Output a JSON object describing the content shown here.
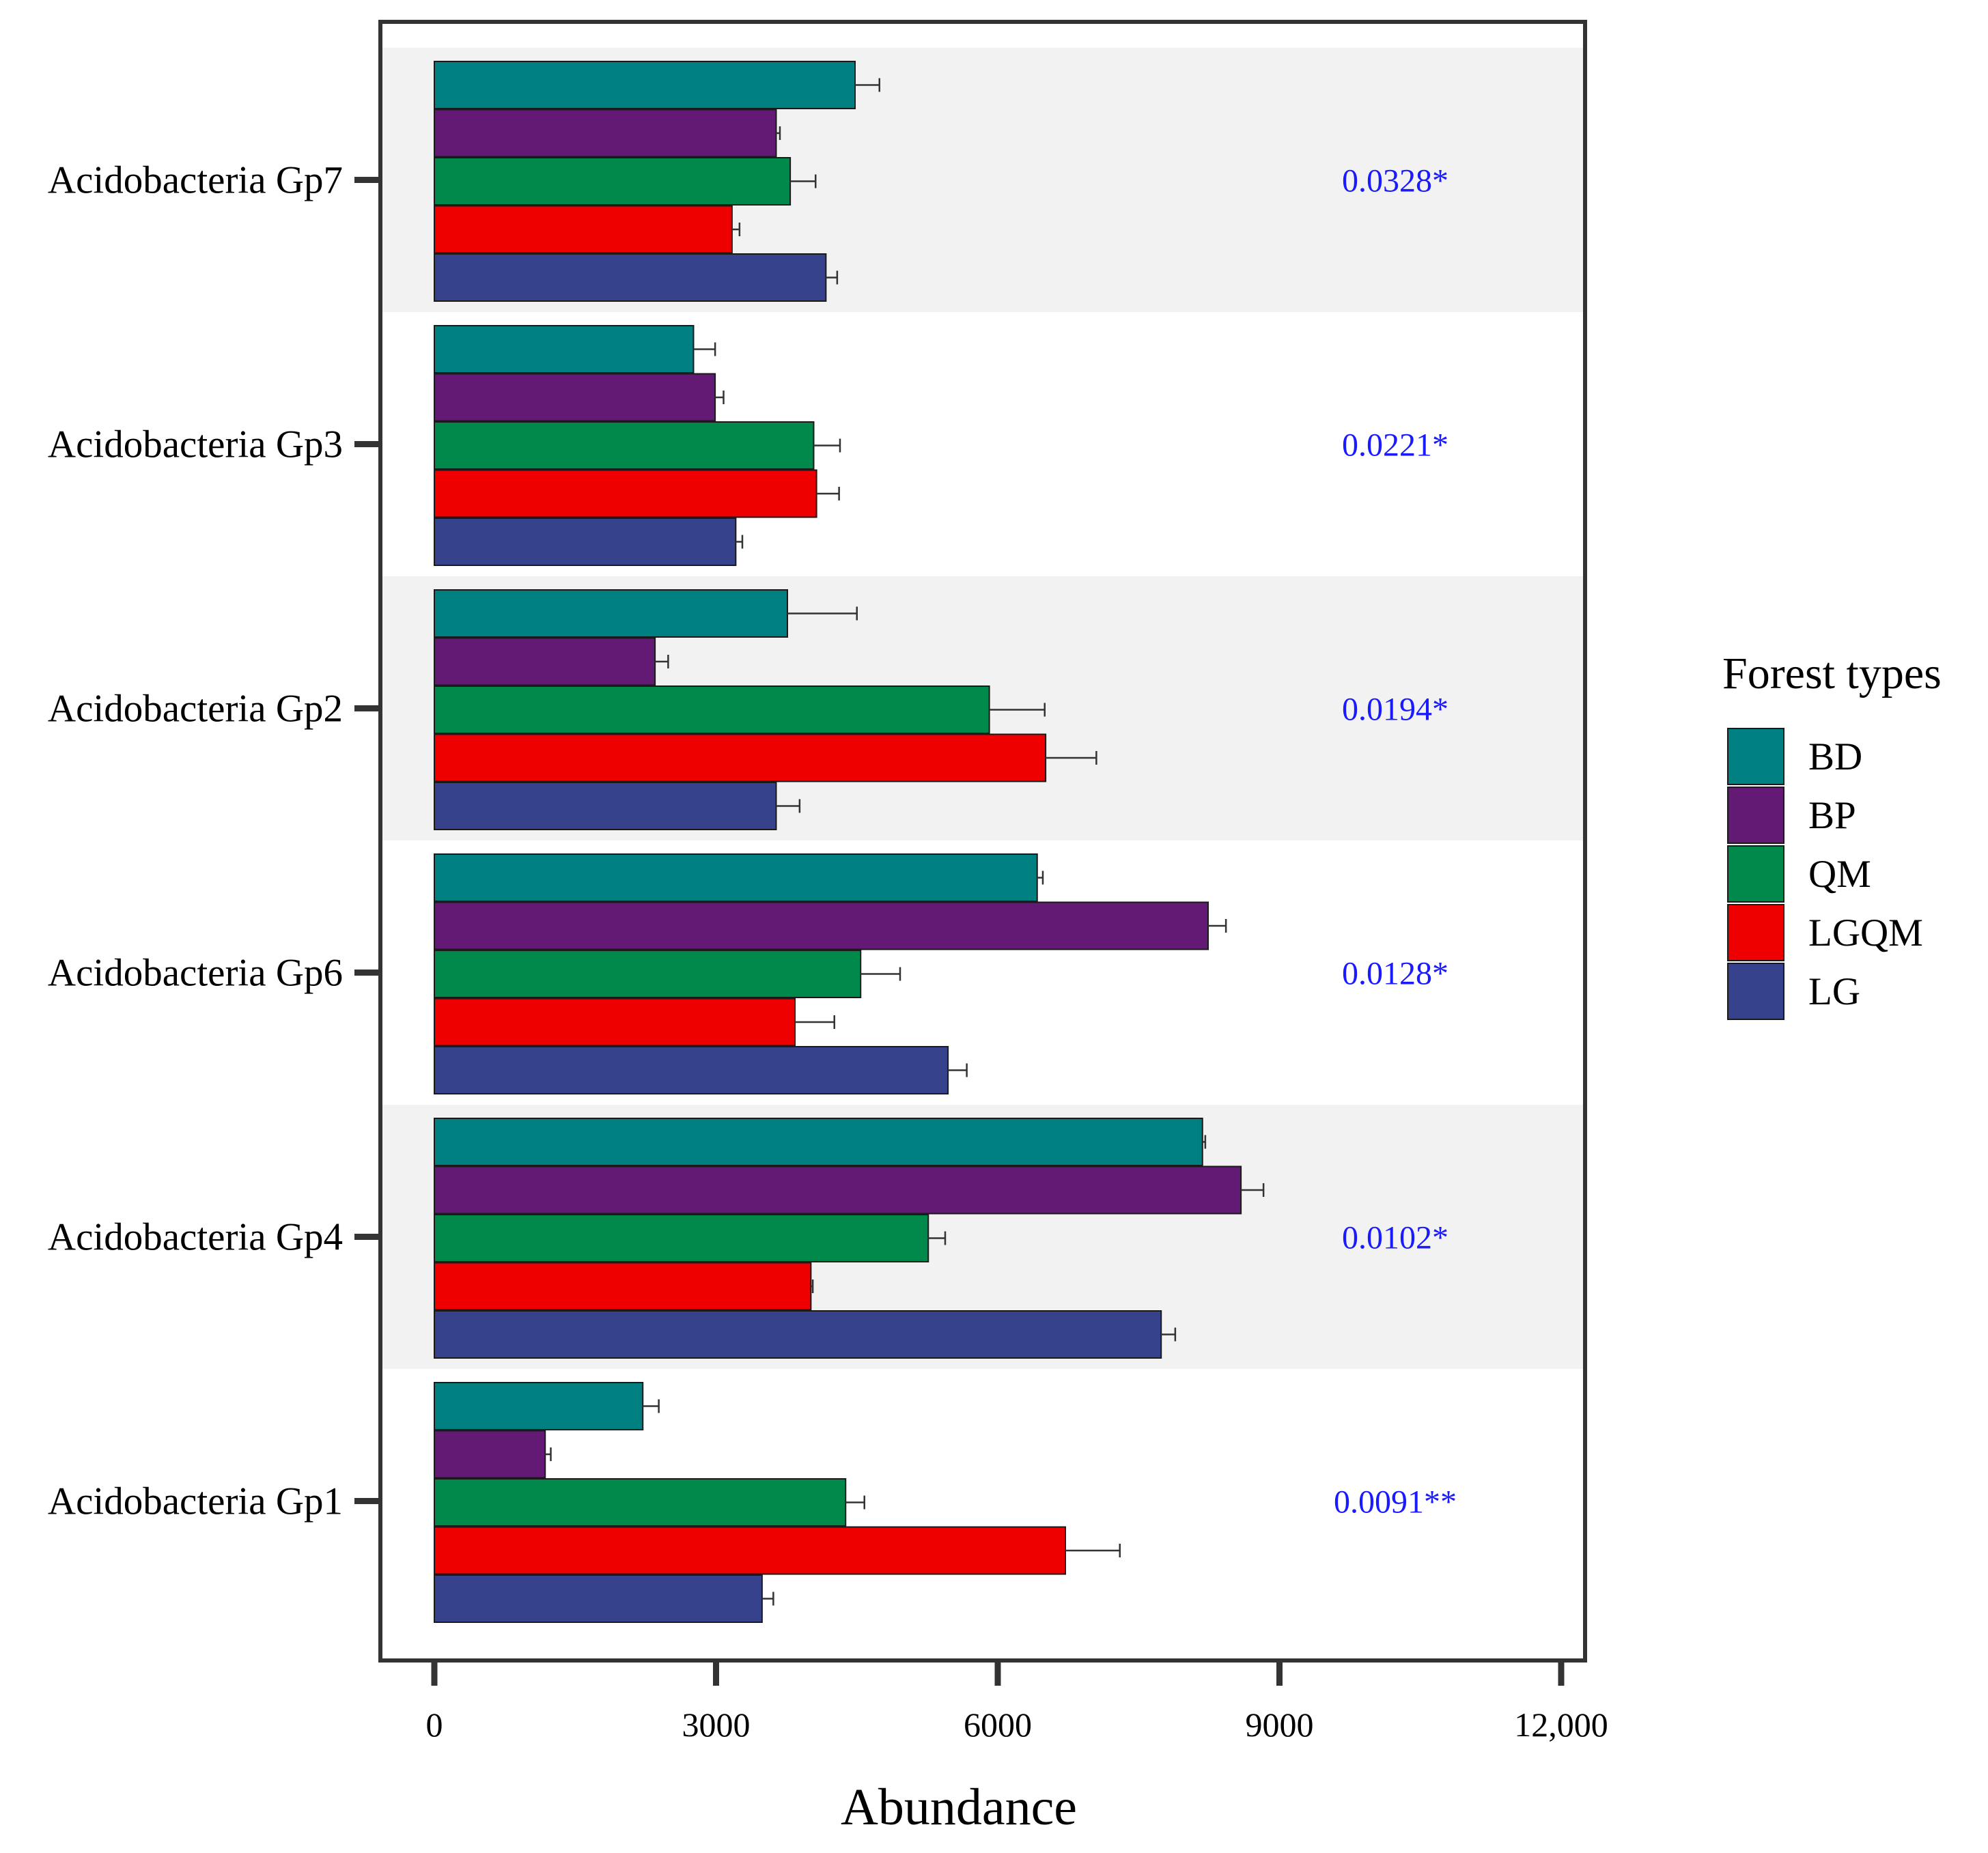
{
  "chart_data": {
    "type": "bar",
    "orientation": "horizontal",
    "title": "",
    "xlabel": "Abundance",
    "ylabel": "",
    "xlim": [
      0,
      12000
    ],
    "xticks": [
      0,
      3000,
      6000,
      9000,
      12000
    ],
    "xtick_labels": [
      "0",
      "3000",
      "6000",
      "9000",
      "12,000"
    ],
    "categories": [
      "Acidobacteria Gp7",
      "Acidobacteria Gp3",
      "Acidobacteria Gp2",
      "Acidobacteria Gp6",
      "Acidobacteria Gp4",
      "Acidobacteria Gp1"
    ],
    "p_values": [
      "0.0328*",
      "0.0221*",
      "0.0194*",
      "0.0128*",
      "0.0102*",
      "0.0091**"
    ],
    "p_value_color": "#1a1aff",
    "band_color": "#f2f2f2",
    "legend": {
      "title": "Forest types",
      "position": "right"
    },
    "series": [
      {
        "name": "BD",
        "color": "#008080",
        "values": [
          4480,
          2760,
          3760,
          6420,
          8180,
          2220
        ],
        "errors": [
          260,
          230,
          740,
          60,
          30,
          170
        ]
      },
      {
        "name": "BP",
        "color": "#621a74",
        "values": [
          3640,
          2990,
          2350,
          8240,
          8590,
          1180
        ],
        "errors": [
          40,
          90,
          140,
          190,
          240,
          60
        ]
      },
      {
        "name": "QM",
        "color": "#00894a",
        "values": [
          3790,
          4040,
          5910,
          4540,
          5260,
          4380
        ],
        "errors": [
          270,
          280,
          590,
          420,
          180,
          200
        ]
      },
      {
        "name": "LGQM",
        "color": "#ee0000",
        "values": [
          3170,
          4070,
          6510,
          3840,
          4010,
          6720
        ],
        "errors": [
          80,
          240,
          540,
          420,
          20,
          580
        ]
      },
      {
        "name": "LG",
        "color": "#37428c",
        "values": [
          4170,
          3210,
          3640,
          5470,
          7740,
          3490
        ],
        "errors": [
          120,
          70,
          250,
          200,
          150,
          120
        ]
      }
    ]
  }
}
